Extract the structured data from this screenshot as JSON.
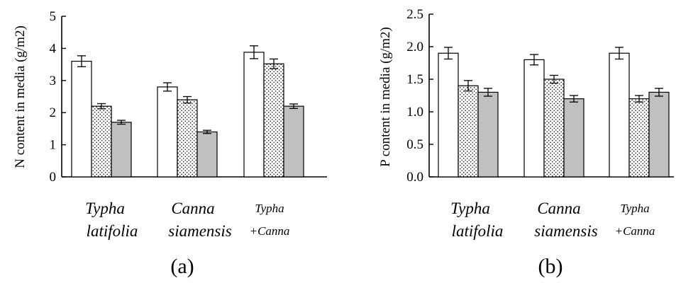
{
  "colors": {
    "white_bar": "#ffffff",
    "dotted_bar": "#ffffff",
    "gray_bar": "#c0c0c0",
    "axis": "#000000"
  },
  "chart_data": [
    {
      "type": "bar",
      "panel_label": "(a)",
      "ylabel": "N content in media (g/m2)",
      "ylim": [
        0,
        5
      ],
      "yticks": [
        "0",
        "1",
        "2",
        "3",
        "4",
        "5"
      ],
      "category_labels": [
        {
          "line1": "Typha",
          "line2": "latifolia",
          "size": "large"
        },
        {
          "line1": "Canna",
          "line2": "siamensis",
          "size": "large"
        },
        {
          "line1": "Typha",
          "line2": "+Canna",
          "size": "small"
        }
      ],
      "series": [
        {
          "pattern": "white",
          "values": [
            3.6,
            2.8,
            3.88
          ],
          "errors": [
            0.17,
            0.13,
            0.2
          ]
        },
        {
          "pattern": "dotted",
          "values": [
            2.2,
            2.4,
            3.52
          ],
          "errors": [
            0.08,
            0.1,
            0.15
          ]
        },
        {
          "pattern": "gray",
          "values": [
            1.7,
            1.4,
            2.2
          ],
          "errors": [
            0.06,
            0.05,
            0.07
          ]
        }
      ],
      "grid": false
    },
    {
      "type": "bar",
      "panel_label": "(b)",
      "ylabel": "P content in media (g/m2)",
      "ylim": [
        0,
        2.5
      ],
      "yticks": [
        "0.0",
        "0.5",
        "1.0",
        "1.5",
        "2.0",
        "2.5"
      ],
      "category_labels": [
        {
          "line1": "Typha",
          "line2": "latifolia",
          "size": "large"
        },
        {
          "line1": "Canna",
          "line2": "siamensis",
          "size": "large"
        },
        {
          "line1": "Typha",
          "line2": "+Canna",
          "size": "small"
        }
      ],
      "series": [
        {
          "pattern": "white",
          "values": [
            1.9,
            1.8,
            1.9
          ],
          "errors": [
            0.09,
            0.08,
            0.09
          ]
        },
        {
          "pattern": "dotted",
          "values": [
            1.4,
            1.5,
            1.2
          ],
          "errors": [
            0.08,
            0.06,
            0.05
          ]
        },
        {
          "pattern": "gray",
          "values": [
            1.3,
            1.2,
            1.3
          ],
          "errors": [
            0.06,
            0.05,
            0.06
          ]
        }
      ],
      "grid": false
    }
  ]
}
